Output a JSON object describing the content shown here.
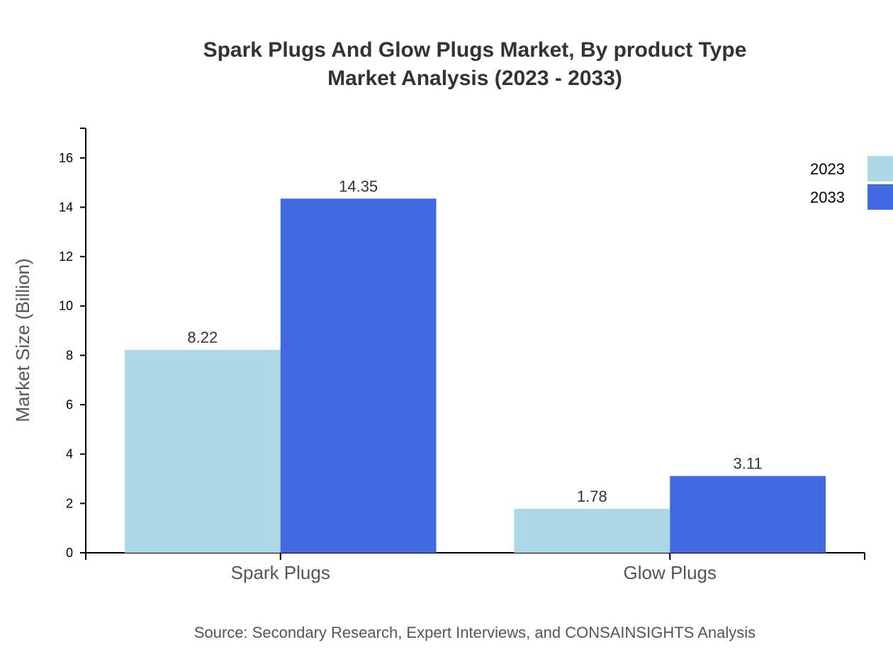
{
  "chart_data": {
    "type": "bar",
    "title": [
      "Spark Plugs And Glow Plugs Market, By product Type",
      "Market Analysis (2023 - 2033)"
    ],
    "xlabel": "",
    "ylabel": "Market Size (Billion)",
    "categories": [
      "Spark Plugs",
      "Glow Plugs"
    ],
    "series": [
      {
        "name": "2023",
        "color": "#ADD8E6",
        "values": [
          8.22,
          1.78
        ]
      },
      {
        "name": "2033",
        "color": "#4169E1",
        "values": [
          14.35,
          3.11
        ]
      }
    ],
    "ylim": [
      0,
      17.2
    ],
    "yticks": [
      0,
      2,
      4,
      6,
      8,
      10,
      12,
      14,
      16
    ],
    "grid": false,
    "legend_position": "top-right",
    "source": "Source: Secondary Research, Expert Interviews, and CONSAINSIGHTS Analysis"
  }
}
